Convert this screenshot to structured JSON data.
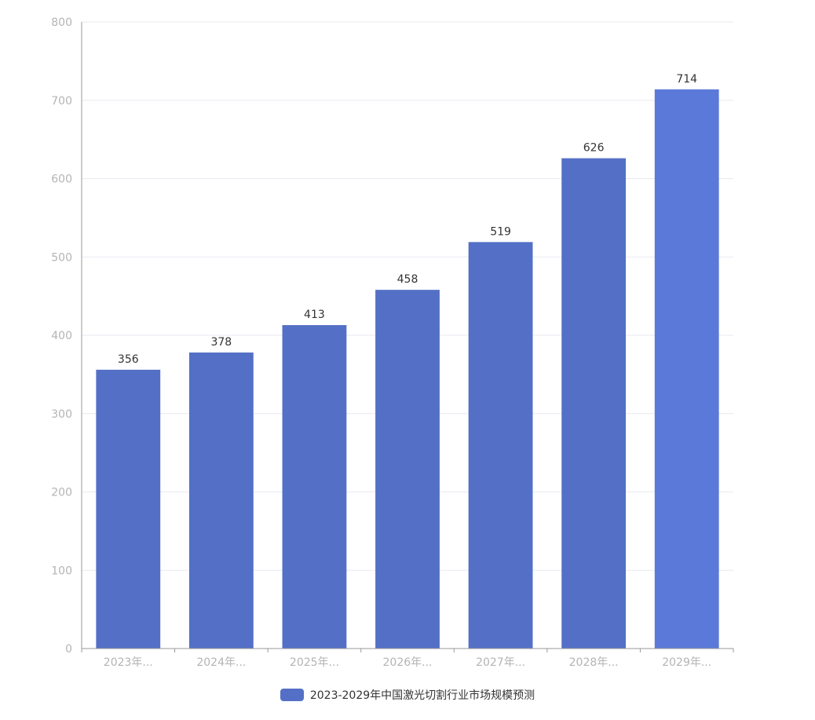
{
  "chart_data": {
    "type": "bar",
    "categories": [
      "2023年...",
      "2024年...",
      "2025年...",
      "2026年...",
      "2027年...",
      "2028年...",
      "2029年..."
    ],
    "series": [
      {
        "name": "2023-2029年中国激光切割行业市场规模预测",
        "values": [
          356,
          378,
          413,
          458,
          519,
          626,
          714
        ]
      }
    ],
    "ylim": [
      0,
      800
    ],
    "yticks": [
      0,
      100,
      200,
      300,
      400,
      500,
      600,
      700,
      800
    ],
    "grid": true,
    "legend": "bottom-center",
    "colors": {
      "bar": "#5470c6",
      "bar_highlight": "#5b79d8",
      "axis": "#9a9a9a",
      "grid": "#e8eaf0",
      "tick_text": "#b4b4b4",
      "value_text": "#333333"
    }
  }
}
